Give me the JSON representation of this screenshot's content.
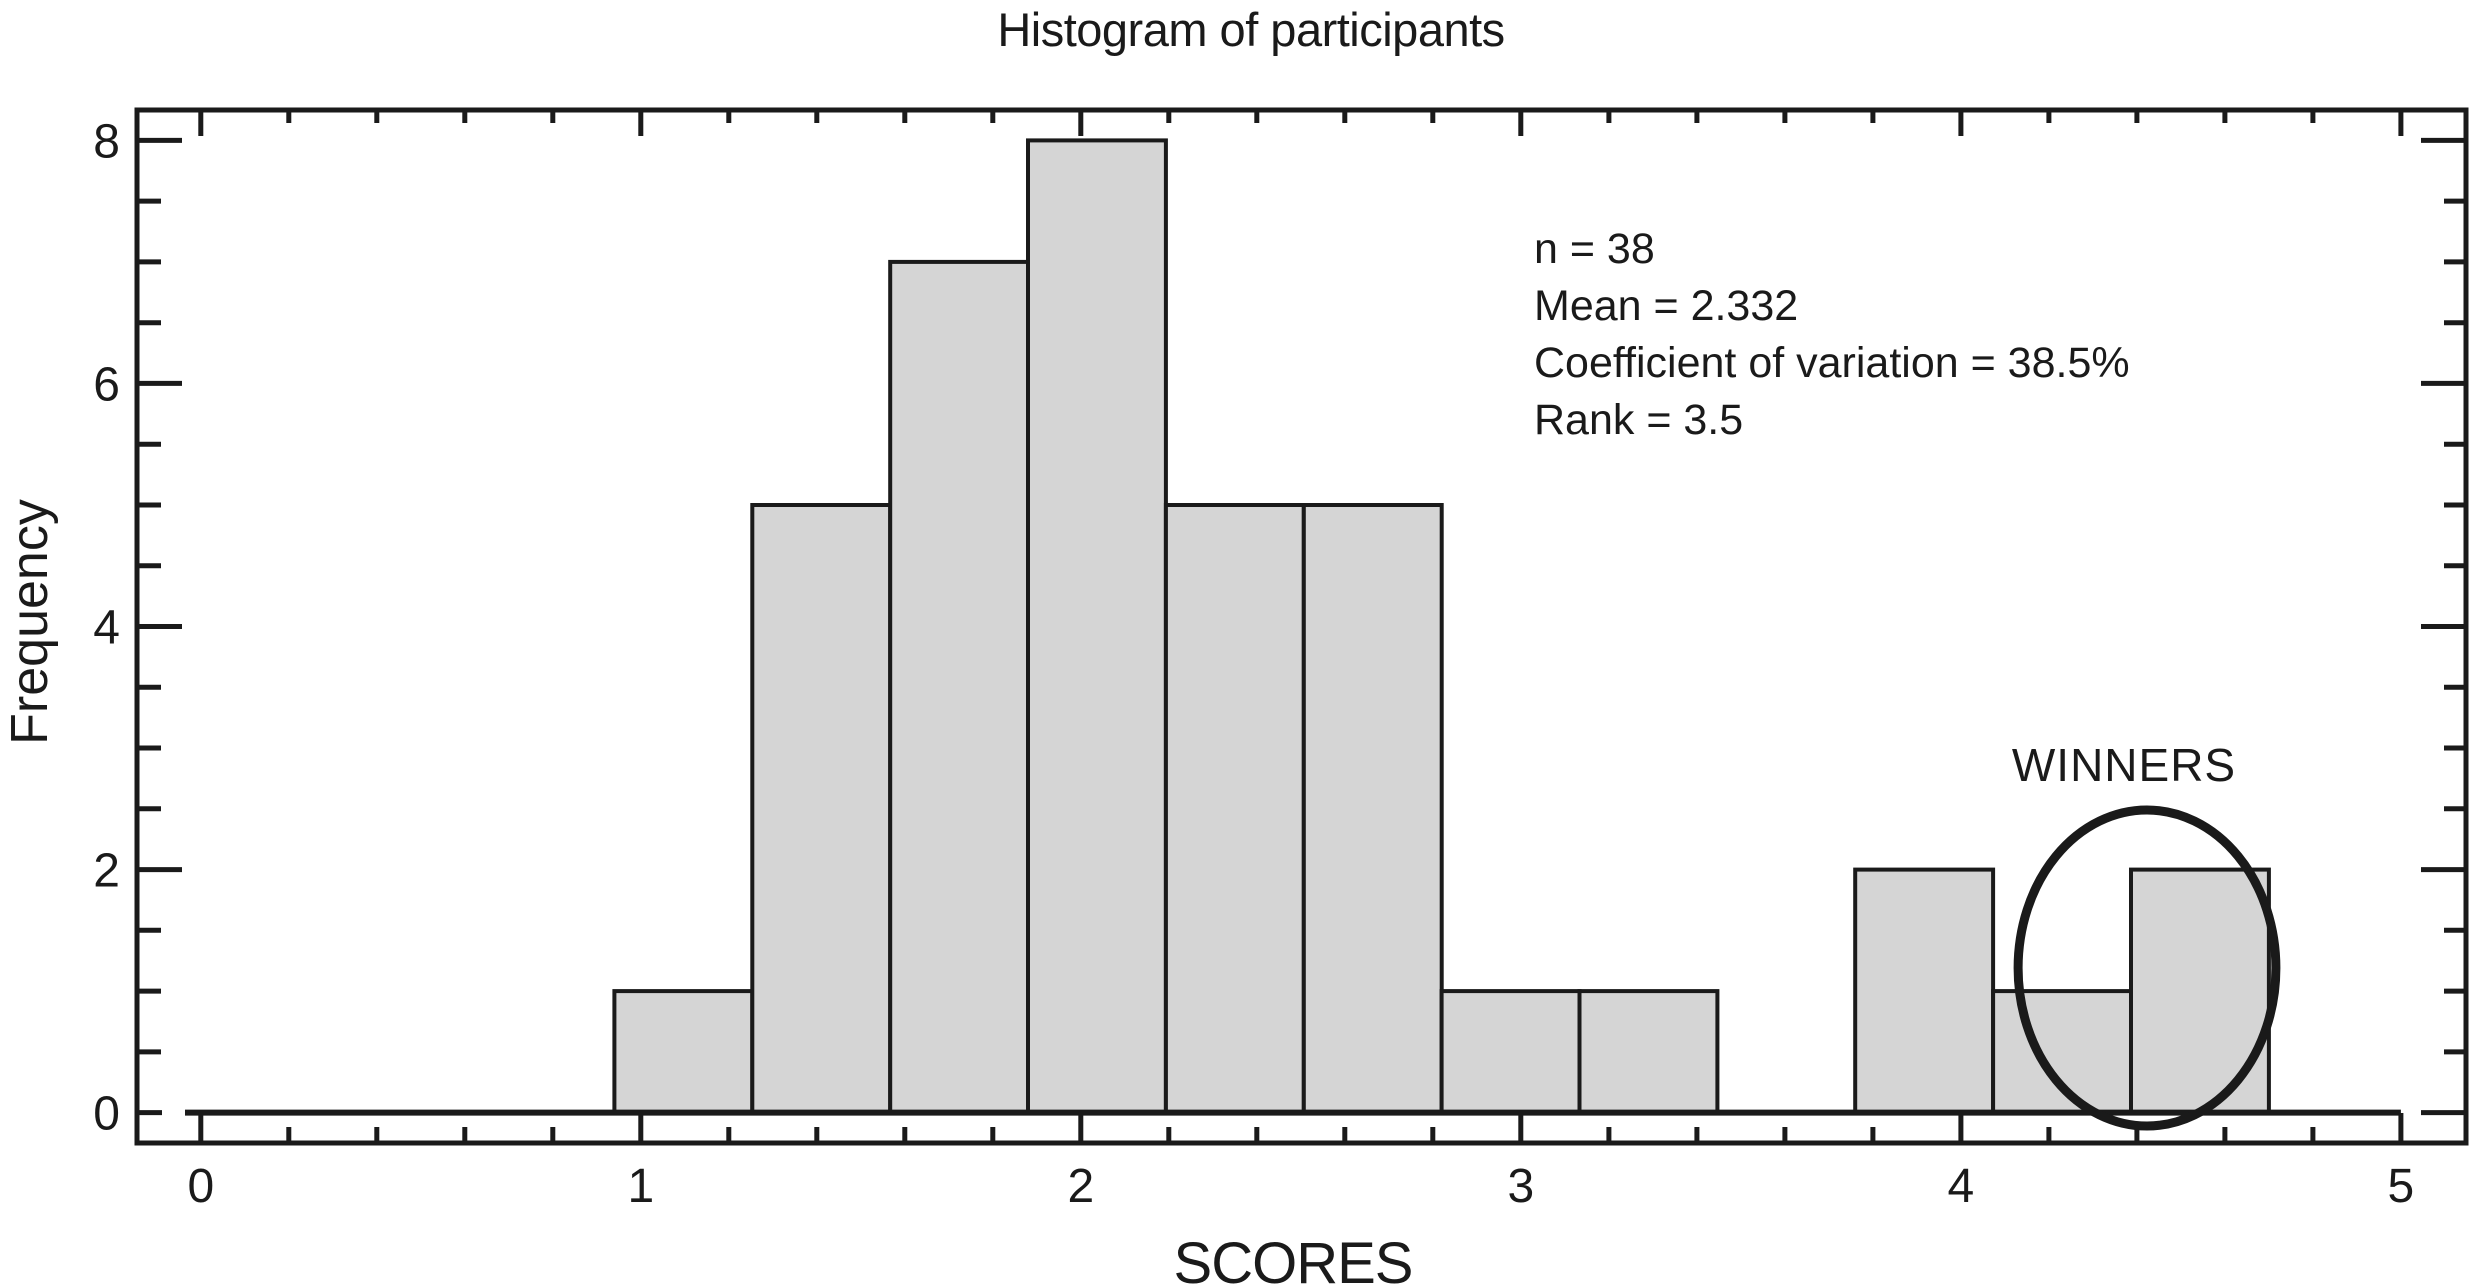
{
  "chart_data": {
    "type": "bar",
    "subtype": "histogram",
    "title": "Histogram of participants",
    "xlabel": "SCORES",
    "ylabel": "Frequency",
    "xlim": [
      -0.145,
      5.148
    ],
    "ylim": [
      -0.25,
      8.25
    ],
    "x_major_ticks": [
      0,
      1,
      2,
      3,
      4,
      5
    ],
    "x_minor_step": 0.2,
    "y_major_ticks": [
      0,
      2,
      4,
      6,
      8
    ],
    "y_minor_step": 0.5,
    "grid": false,
    "legend_position": "none",
    "bins": {
      "start": 0.94,
      "width": 0.31333,
      "frequencies": [
        1,
        5,
        7,
        8,
        5,
        5,
        1,
        1,
        0,
        2,
        1,
        2
      ]
    },
    "annotation": {
      "lines": [
        "n = 38",
        "Mean = 2.332",
        "Coefficient of variation = 38.5%",
        "Rank = 3.5"
      ]
    },
    "winners": {
      "label": "WINNERS",
      "ellipse": {
        "cx": 4.423,
        "cy": 1.19,
        "rx": 0.293,
        "ry": 1.3
      }
    },
    "colors": {
      "ink": "#1a1a1a",
      "bar_fill": "#d5d5d5",
      "background": "#ffffff"
    }
  }
}
